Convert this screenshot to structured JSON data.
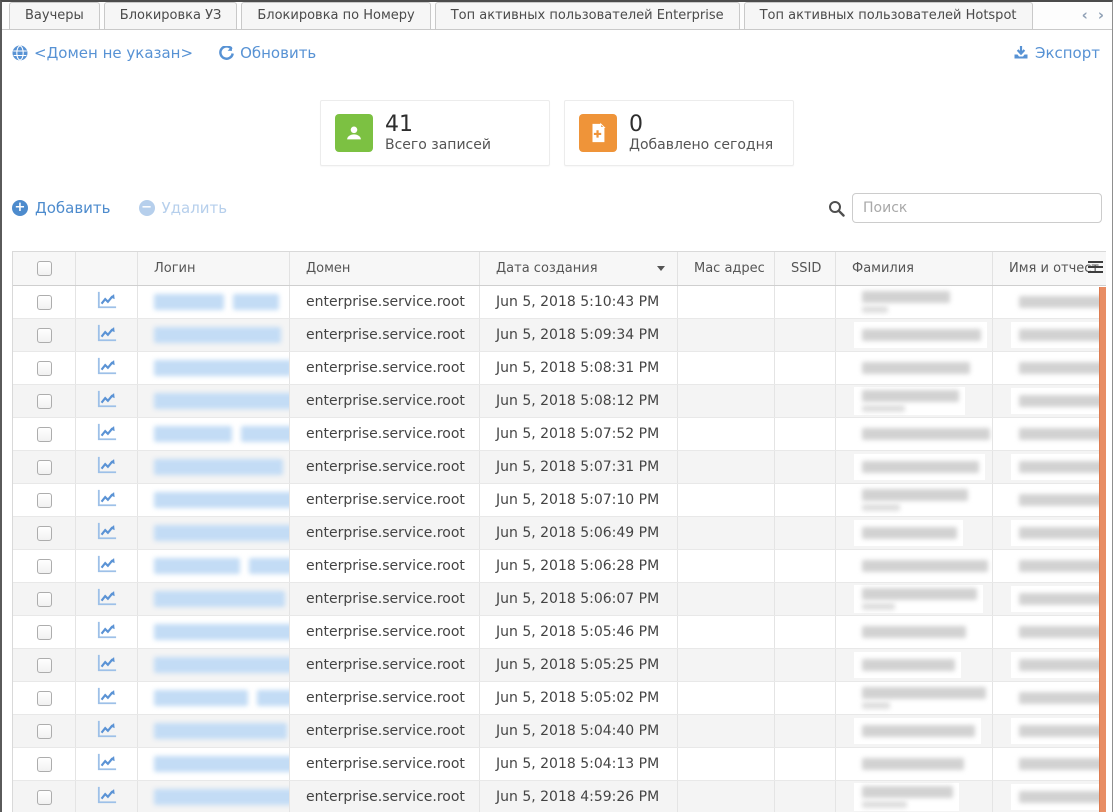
{
  "tabs": {
    "items": [
      {
        "label": "Ваучеры"
      },
      {
        "label": "Блокировка УЗ"
      },
      {
        "label": "Блокировка по Номеру"
      },
      {
        "label": "Топ активных пользователей Enterprise"
      },
      {
        "label": "Топ активных пользователей Hotspot"
      }
    ],
    "scroll_left": "‹",
    "scroll_right": "›"
  },
  "toolbar": {
    "domain_label": "<Домен не указан>",
    "refresh_label": "Обновить",
    "export_label": "Экспорт"
  },
  "stats": [
    {
      "value": "41",
      "label": "Всего записей",
      "icon": "user-icon",
      "color": "#7cc142"
    },
    {
      "value": "0",
      "label": "Добавлено сегодня",
      "icon": "file-plus-icon",
      "color": "#ef9439"
    }
  ],
  "actions": {
    "add_label": "Добавить",
    "delete_label": "Удалить",
    "delete_disabled": true
  },
  "search": {
    "placeholder": "Поиск"
  },
  "colors": {
    "link_blue": "#5792d4",
    "green_icon": "#7cc142",
    "orange_icon": "#ef9439",
    "scrollbar_orange": "#e88d64"
  },
  "table": {
    "columns": [
      "",
      "",
      "Логин",
      "Домен",
      "Дата создания",
      "Mac адрес",
      "SSID",
      "Фамилия",
      "Имя и отчест"
    ],
    "sorted_column": "Дата создания",
    "sort_direction": "desc",
    "redacted_columns": [
      "Логин",
      "Фамилия",
      "Имя и отчест"
    ],
    "rows": [
      {
        "domain": "enterprise.service.root",
        "created": "Jun 5, 2018 5:10:43 PM",
        "mac": "",
        "ssid": ""
      },
      {
        "domain": "enterprise.service.root",
        "created": "Jun 5, 2018 5:09:34 PM",
        "mac": "",
        "ssid": ""
      },
      {
        "domain": "enterprise.service.root",
        "created": "Jun 5, 2018 5:08:31 PM",
        "mac": "",
        "ssid": ""
      },
      {
        "domain": "enterprise.service.root",
        "created": "Jun 5, 2018 5:08:12 PM",
        "mac": "",
        "ssid": ""
      },
      {
        "domain": "enterprise.service.root",
        "created": "Jun 5, 2018 5:07:52 PM",
        "mac": "",
        "ssid": ""
      },
      {
        "domain": "enterprise.service.root",
        "created": "Jun 5, 2018 5:07:31 PM",
        "mac": "",
        "ssid": ""
      },
      {
        "domain": "enterprise.service.root",
        "created": "Jun 5, 2018 5:07:10 PM",
        "mac": "",
        "ssid": ""
      },
      {
        "domain": "enterprise.service.root",
        "created": "Jun 5, 2018 5:06:49 PM",
        "mac": "",
        "ssid": ""
      },
      {
        "domain": "enterprise.service.root",
        "created": "Jun 5, 2018 5:06:28 PM",
        "mac": "",
        "ssid": ""
      },
      {
        "domain": "enterprise.service.root",
        "created": "Jun 5, 2018 5:06:07 PM",
        "mac": "",
        "ssid": ""
      },
      {
        "domain": "enterprise.service.root",
        "created": "Jun 5, 2018 5:05:46 PM",
        "mac": "",
        "ssid": ""
      },
      {
        "domain": "enterprise.service.root",
        "created": "Jun 5, 2018 5:05:25 PM",
        "mac": "",
        "ssid": ""
      },
      {
        "domain": "enterprise.service.root",
        "created": "Jun 5, 2018 5:05:02 PM",
        "mac": "",
        "ssid": ""
      },
      {
        "domain": "enterprise.service.root",
        "created": "Jun 5, 2018 5:04:40 PM",
        "mac": "",
        "ssid": ""
      },
      {
        "domain": "enterprise.service.root",
        "created": "Jun 5, 2018 5:04:13 PM",
        "mac": "",
        "ssid": ""
      },
      {
        "domain": "enterprise.service.root",
        "created": "Jun 5, 2018 4:59:26 PM",
        "mac": "",
        "ssid": ""
      }
    ]
  }
}
